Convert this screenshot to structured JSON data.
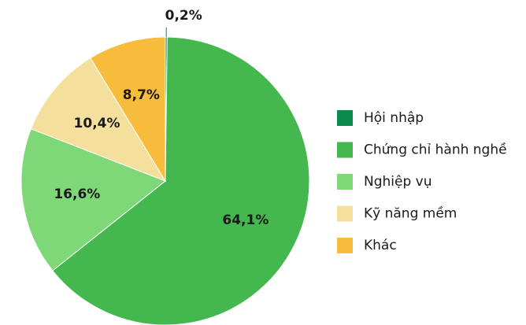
{
  "chart_data": {
    "type": "pie",
    "categories": [
      "Hội nhập",
      "Chứng chỉ hành nghề",
      "Nghiệp vụ",
      "Kỹ năng mềm",
      "Khác"
    ],
    "values": [
      0.2,
      64.1,
      16.6,
      10.4,
      8.7
    ],
    "value_labels": [
      "0,2%",
      "64,1%",
      "16,6%",
      "10,4%",
      "8,7%"
    ],
    "colors": [
      "#0b8a4c",
      "#45b74f",
      "#7fd877",
      "#f4e09c",
      "#f7bc3b"
    ],
    "legend": "right"
  }
}
